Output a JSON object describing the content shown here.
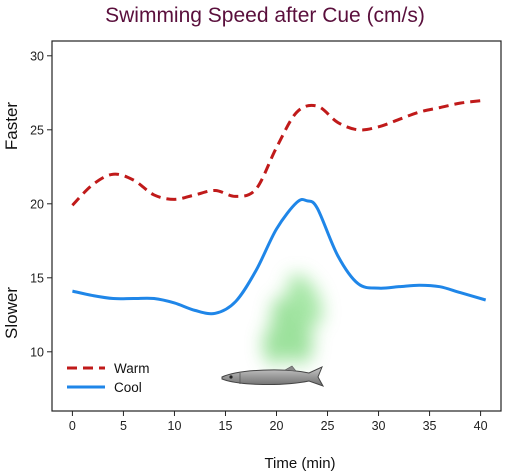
{
  "chart_data": {
    "type": "line",
    "title": "Swimming Speed after Cue (cm/s)",
    "xlabel": "Time (min)",
    "ylabel_top": "Faster",
    "ylabel_bottom": "Slower",
    "xlim": [
      -2,
      42
    ],
    "ylim": [
      6,
      31
    ],
    "xticks": [
      0,
      5,
      10,
      15,
      20,
      25,
      30,
      35,
      40
    ],
    "yticks": [
      10,
      15,
      20,
      25,
      30
    ],
    "grid": false,
    "legend_position": "bottom-left",
    "series": [
      {
        "name": "Warm",
        "color": "#c01a1a",
        "style": "dashed",
        "x": [
          0,
          2,
          4,
          6,
          8,
          10,
          12,
          14,
          16,
          18,
          20,
          22,
          24,
          26,
          28,
          30,
          32,
          34,
          36,
          38,
          40.5
        ],
        "y": [
          19.9,
          21.3,
          22.0,
          21.6,
          20.6,
          20.3,
          20.6,
          20.9,
          20.5,
          21.0,
          23.8,
          26.2,
          26.6,
          25.5,
          25.0,
          25.2,
          25.7,
          26.2,
          26.5,
          26.8,
          27.0
        ]
      },
      {
        "name": "Cool",
        "color": "#1f86e8",
        "style": "solid",
        "x": [
          0,
          2,
          4,
          6,
          8,
          10,
          12,
          14,
          16,
          18,
          20,
          22,
          23,
          24,
          26,
          28,
          30,
          32,
          34,
          36,
          38,
          40.5
        ],
        "y": [
          14.1,
          13.8,
          13.6,
          13.6,
          13.6,
          13.3,
          12.8,
          12.6,
          13.4,
          15.5,
          18.3,
          20.1,
          20.2,
          19.7,
          16.5,
          14.6,
          14.3,
          14.4,
          14.5,
          14.4,
          14.0,
          13.5
        ]
      }
    ]
  }
}
